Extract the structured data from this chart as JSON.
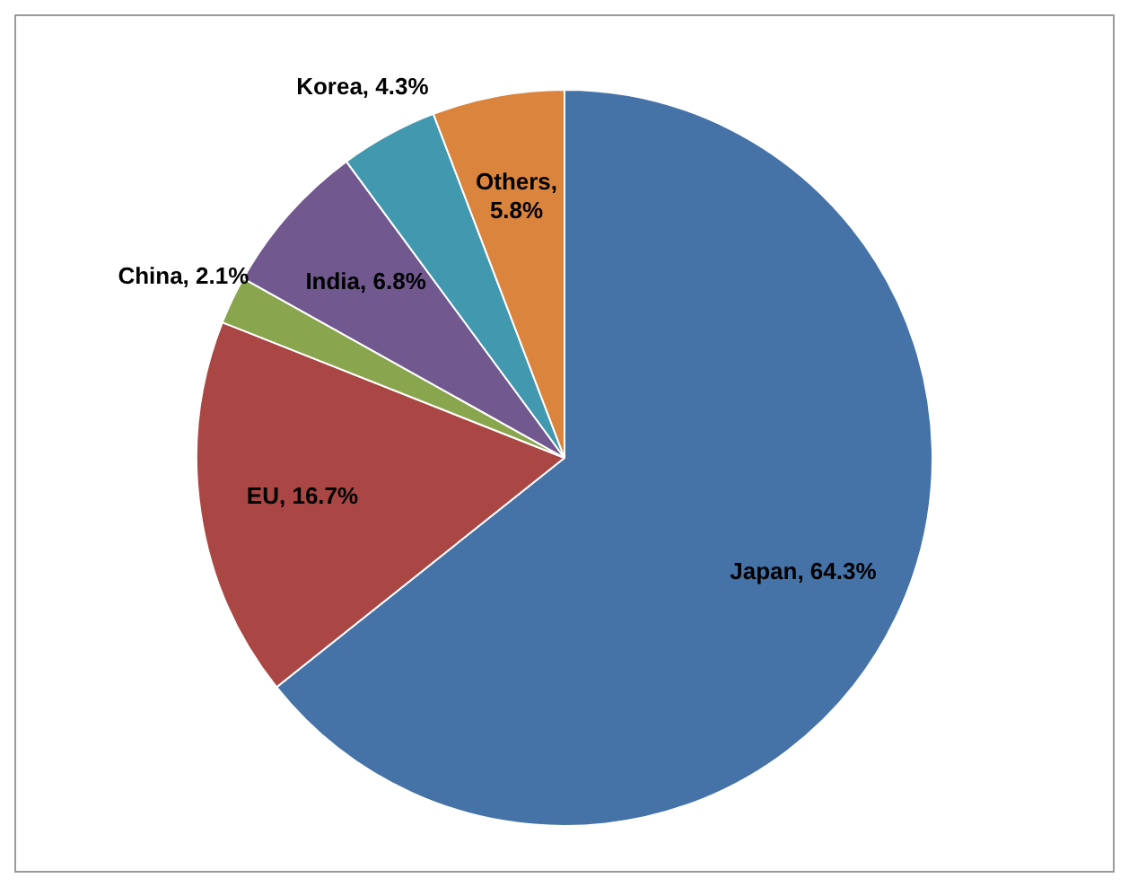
{
  "chart_data": {
    "type": "pie",
    "categories": [
      "Japan",
      "EU",
      "China",
      "India",
      "Korea",
      "Others"
    ],
    "values": [
      64.3,
      16.7,
      2.1,
      6.8,
      4.3,
      5.8
    ],
    "value_labels": [
      ", 64.3%",
      ", 16.7%",
      ", 2.1%",
      ", 6.8%",
      ", 4.3%",
      ", 5.8%"
    ],
    "colors": [
      "#4572a7",
      "#aa4643",
      "#89a54e",
      "#71588f",
      "#4198af",
      "#db843d"
    ],
    "legend": false
  }
}
